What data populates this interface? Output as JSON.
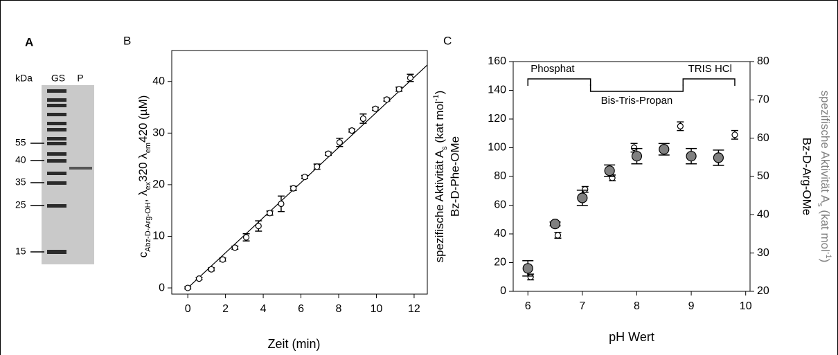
{
  "gel": {
    "panel_label": "A",
    "unit": "kDa",
    "lanes": [
      "GS",
      "P"
    ],
    "markers": [
      55,
      40,
      35,
      25,
      15
    ]
  },
  "chart_data": [
    {
      "type": "scatter",
      "panel_label": "B",
      "x": [
        0,
        0.6,
        1.25,
        1.85,
        2.5,
        3.1,
        3.75,
        4.35,
        4.95,
        5.6,
        6.2,
        6.85,
        7.45,
        8.05,
        8.7,
        9.3,
        9.95,
        10.55,
        11.2,
        11.8
      ],
      "values": [
        0,
        1.8,
        3.6,
        5.5,
        7.8,
        9.8,
        12.0,
        14.5,
        16.3,
        19.3,
        21.5,
        23.5,
        26.0,
        28.2,
        30.5,
        32.8,
        34.7,
        36.5,
        38.5,
        40.7
      ],
      "errors": [
        0.2,
        0.2,
        0.3,
        0.3,
        0.3,
        0.7,
        1.0,
        0.4,
        1.5,
        0.4,
        0.3,
        0.5,
        0.3,
        0.8,
        0.3,
        0.9,
        0.3,
        0.3,
        0.4,
        0.7
      ],
      "color": "#ffffff",
      "fit": {
        "x": [
          0,
          12.7
        ],
        "y": [
          0,
          43.2
        ]
      },
      "xlim": [
        -0.85,
        12.7
      ],
      "ylim": [
        -1.2,
        46
      ],
      "xticks": [
        0,
        2,
        4,
        6,
        8,
        10,
        12
      ],
      "yticks": [
        0,
        10,
        20,
        30,
        40
      ],
      "xlabel": "Zeit (min)",
      "ylabel": [
        {
          "text": "c"
        },
        {
          "text": "Abz-D-Arg-OH",
          "shift": "sub"
        },
        {
          "text": ", λ"
        },
        {
          "text": "ex",
          "shift": "sub"
        },
        {
          "text": "320 λ"
        },
        {
          "text": "em",
          "shift": "sub"
        },
        {
          "text": "420 (µM)"
        }
      ]
    },
    {
      "type": "scatter",
      "panel_label": "C",
      "series": [
        {
          "name": "Bz-D-Phe-OMe",
          "color": "#ffffff",
          "x": [
            6.05,
            6.55,
            7.05,
            7.55,
            7.95,
            8.8,
            9.8
          ],
          "values": [
            10,
            39,
            71,
            79,
            100,
            115,
            109
          ],
          "errors": [
            2,
            2,
            2,
            2,
            3,
            3,
            3
          ]
        },
        {
          "name": "Bz-D-Arg-OMe",
          "color": "#808080",
          "axis": "y2",
          "x": [
            6.0,
            6.5,
            7.0,
            7.5,
            8.0,
            8.5,
            9.0,
            9.5
          ],
          "values": [
            26,
            37.6,
            44.4,
            51.5,
            55.3,
            57.1,
            55.3,
            54.9
          ],
          "errors": [
            2,
            0.5,
            2,
            1.5,
            2,
            1.5,
            2,
            2
          ]
        }
      ],
      "buffers": [
        {
          "label": "Phosphat",
          "x": [
            6,
            7.15
          ]
        },
        {
          "label": "Bis-Tris-Propan",
          "x": [
            7.15,
            8.85
          ]
        },
        {
          "label": "TRIS HCl",
          "x": [
            8.85,
            9.8
          ]
        }
      ],
      "xlim": [
        5.73,
        10.08
      ],
      "ylim": [
        0,
        160
      ],
      "y2lim": [
        20,
        80
      ],
      "xticks": [
        6,
        7,
        8,
        9,
        10
      ],
      "yticks": [
        0,
        20,
        40,
        60,
        80,
        100,
        120,
        140,
        160
      ],
      "y2ticks": [
        20,
        30,
        40,
        50,
        60,
        70,
        80
      ],
      "xlabel": "pH Wert",
      "ylabel": [
        {
          "text": "spezifische Aktivität A"
        },
        {
          "text": "s",
          "shift": "sub"
        },
        {
          "text": " (kat mol"
        },
        {
          "text": "-1",
          "shift": "super"
        },
        {
          "text": ")"
        }
      ],
      "y2label": [
        {
          "text": "spezifische Aktivität A"
        },
        {
          "text": "s",
          "shift": "sub"
        },
        {
          "text": " (kat mol"
        },
        {
          "text": "-1",
          "shift": "super"
        },
        {
          "text": ")"
        }
      ]
    }
  ]
}
